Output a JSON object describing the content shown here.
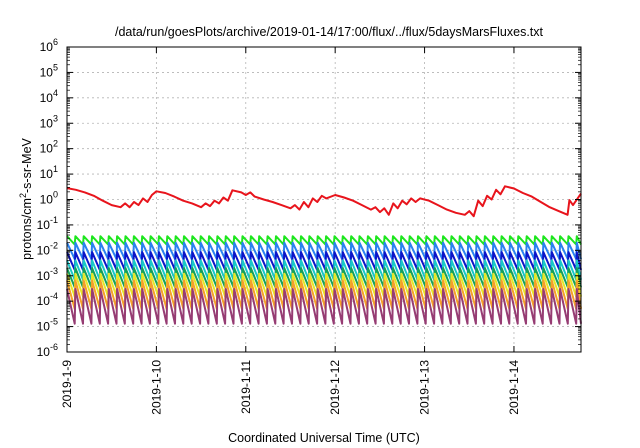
{
  "chart_data": {
    "type": "line",
    "title": "/data/run/goesPlots/archive/2019-01-14/17:00/flux/../flux/5daysMarsFluxes.txt",
    "xlabel": "Coordinated Universal Time (UTC)",
    "ylabel": {
      "base": "protons/cm",
      "sup": "2",
      "rest": "-s-sr-MeV"
    },
    "x_start": "2019-01-09 00:00",
    "x_end": "2019-01-14 18:00",
    "xlim_days": [
      0,
      5.75
    ],
    "x_ticks": [
      {
        "label": "2019-1-9",
        "day": 0
      },
      {
        "label": "2019-1-10",
        "day": 1
      },
      {
        "label": "2019-1-11",
        "day": 2
      },
      {
        "label": "2019-1-12",
        "day": 3
      },
      {
        "label": "2019-1-13",
        "day": 4
      },
      {
        "label": "2019-1-14",
        "day": 5
      }
    ],
    "y_scale": "log",
    "ylim": [
      1e-06,
      1000000.0
    ],
    "y_ticks": [
      {
        "base": "10",
        "exp": "6",
        "value": 1000000.0
      },
      {
        "base": "10",
        "exp": "5",
        "value": 100000.0
      },
      {
        "base": "10",
        "exp": "4",
        "value": 10000.0
      },
      {
        "base": "10",
        "exp": "3",
        "value": 1000.0
      },
      {
        "base": "10",
        "exp": "2",
        "value": 100.0
      },
      {
        "base": "10",
        "exp": "1",
        "value": 10.0
      },
      {
        "base": "10",
        "exp": "0",
        "value": 1.0
      },
      {
        "base": "10",
        "exp": "-1",
        "value": 0.1
      },
      {
        "base": "10",
        "exp": "-2",
        "value": 0.01
      },
      {
        "base": "10",
        "exp": "-3",
        "value": 0.001
      },
      {
        "base": "10",
        "exp": "-4",
        "value": 0.0001
      },
      {
        "base": "10",
        "exp": "-5",
        "value": 1e-05
      },
      {
        "base": "10",
        "exp": "-6",
        "value": 1e-06
      }
    ],
    "grid": true,
    "legend": "none",
    "series": [
      {
        "color": "#e8141c",
        "points": [
          [
            0.0,
            2.8
          ],
          [
            0.1,
            2.4
          ],
          [
            0.2,
            1.9
          ],
          [
            0.3,
            1.4
          ],
          [
            0.4,
            0.9
          ],
          [
            0.5,
            0.6
          ],
          [
            0.6,
            0.5
          ],
          [
            0.65,
            0.7
          ],
          [
            0.7,
            0.5
          ],
          [
            0.75,
            0.8
          ],
          [
            0.8,
            0.6
          ],
          [
            0.85,
            1.1
          ],
          [
            0.9,
            0.8
          ],
          [
            0.95,
            1.5
          ],
          [
            1.0,
            2.1
          ],
          [
            1.1,
            1.8
          ],
          [
            1.2,
            1.3
          ],
          [
            1.3,
            0.9
          ],
          [
            1.4,
            0.7
          ],
          [
            1.5,
            0.5
          ],
          [
            1.55,
            0.7
          ],
          [
            1.6,
            0.55
          ],
          [
            1.65,
            0.9
          ],
          [
            1.7,
            0.7
          ],
          [
            1.75,
            1.2
          ],
          [
            1.8,
            0.9
          ],
          [
            1.85,
            2.3
          ],
          [
            1.95,
            1.9
          ],
          [
            2.0,
            1.5
          ],
          [
            2.05,
            1.9
          ],
          [
            2.1,
            1.3
          ],
          [
            2.2,
            1.0
          ],
          [
            2.3,
            0.8
          ],
          [
            2.4,
            0.6
          ],
          [
            2.5,
            0.45
          ],
          [
            2.55,
            0.6
          ],
          [
            2.6,
            0.4
          ],
          [
            2.65,
            0.8
          ],
          [
            2.7,
            0.5
          ],
          [
            2.75,
            1.1
          ],
          [
            2.8,
            0.8
          ],
          [
            2.85,
            1.4
          ],
          [
            2.9,
            1.1
          ],
          [
            3.0,
            1.5
          ],
          [
            3.1,
            1.2
          ],
          [
            3.2,
            0.9
          ],
          [
            3.3,
            0.6
          ],
          [
            3.4,
            0.4
          ],
          [
            3.45,
            0.5
          ],
          [
            3.5,
            0.32
          ],
          [
            3.55,
            0.45
          ],
          [
            3.6,
            0.25
          ],
          [
            3.65,
            0.7
          ],
          [
            3.7,
            0.45
          ],
          [
            3.75,
            0.9
          ],
          [
            3.8,
            0.65
          ],
          [
            3.85,
            1.1
          ],
          [
            3.9,
            0.8
          ],
          [
            3.95,
            1.1
          ],
          [
            4.05,
            0.9
          ],
          [
            4.15,
            0.6
          ],
          [
            4.25,
            0.4
          ],
          [
            4.35,
            0.3
          ],
          [
            4.45,
            0.25
          ],
          [
            4.5,
            0.35
          ],
          [
            4.55,
            0.22
          ],
          [
            4.6,
            0.9
          ],
          [
            4.65,
            0.55
          ],
          [
            4.7,
            1.4
          ],
          [
            4.75,
            1.0
          ],
          [
            4.8,
            2.4
          ],
          [
            4.85,
            1.6
          ],
          [
            4.9,
            3.3
          ],
          [
            5.0,
            2.7
          ],
          [
            5.1,
            1.8
          ],
          [
            5.2,
            1.3
          ],
          [
            5.3,
            0.8
          ],
          [
            5.4,
            0.5
          ],
          [
            5.5,
            0.35
          ],
          [
            5.6,
            0.25
          ],
          [
            5.62,
            0.95
          ],
          [
            5.66,
            0.6
          ],
          [
            5.7,
            0.95
          ],
          [
            5.75,
            1.7
          ]
        ]
      },
      {
        "color": "#1ee61e",
        "period": 0.0935,
        "high": 0.036,
        "low": 0.017,
        "x_end": 5.75
      },
      {
        "color": "#2a82f0",
        "period": 0.0935,
        "high": 0.02,
        "low": 0.0045,
        "x_end": 5.75
      },
      {
        "color": "#0c14c8",
        "period": 0.0935,
        "high": 0.0085,
        "low": 0.0017,
        "x_end": 5.75
      },
      {
        "color": "#18c8c8",
        "period": 0.0935,
        "high": 0.004,
        "low": 0.0007,
        "x_end": 5.75
      },
      {
        "color": "#14a05a",
        "period": 0.0935,
        "high": 0.002,
        "low": 0.00035,
        "x_end": 5.75
      },
      {
        "color": "#e6e628",
        "period": 0.0935,
        "high": 0.0012,
        "low": 0.00015,
        "x_end": 5.75
      },
      {
        "color": "#f5a028",
        "period": 0.0935,
        "high": 0.00065,
        "low": 5e-05,
        "x_end": 5.75
      },
      {
        "color": "#963c73",
        "period": 0.0935,
        "high": 0.0003,
        "low": 1.3e-05,
        "x_end": 5.75
      }
    ]
  }
}
